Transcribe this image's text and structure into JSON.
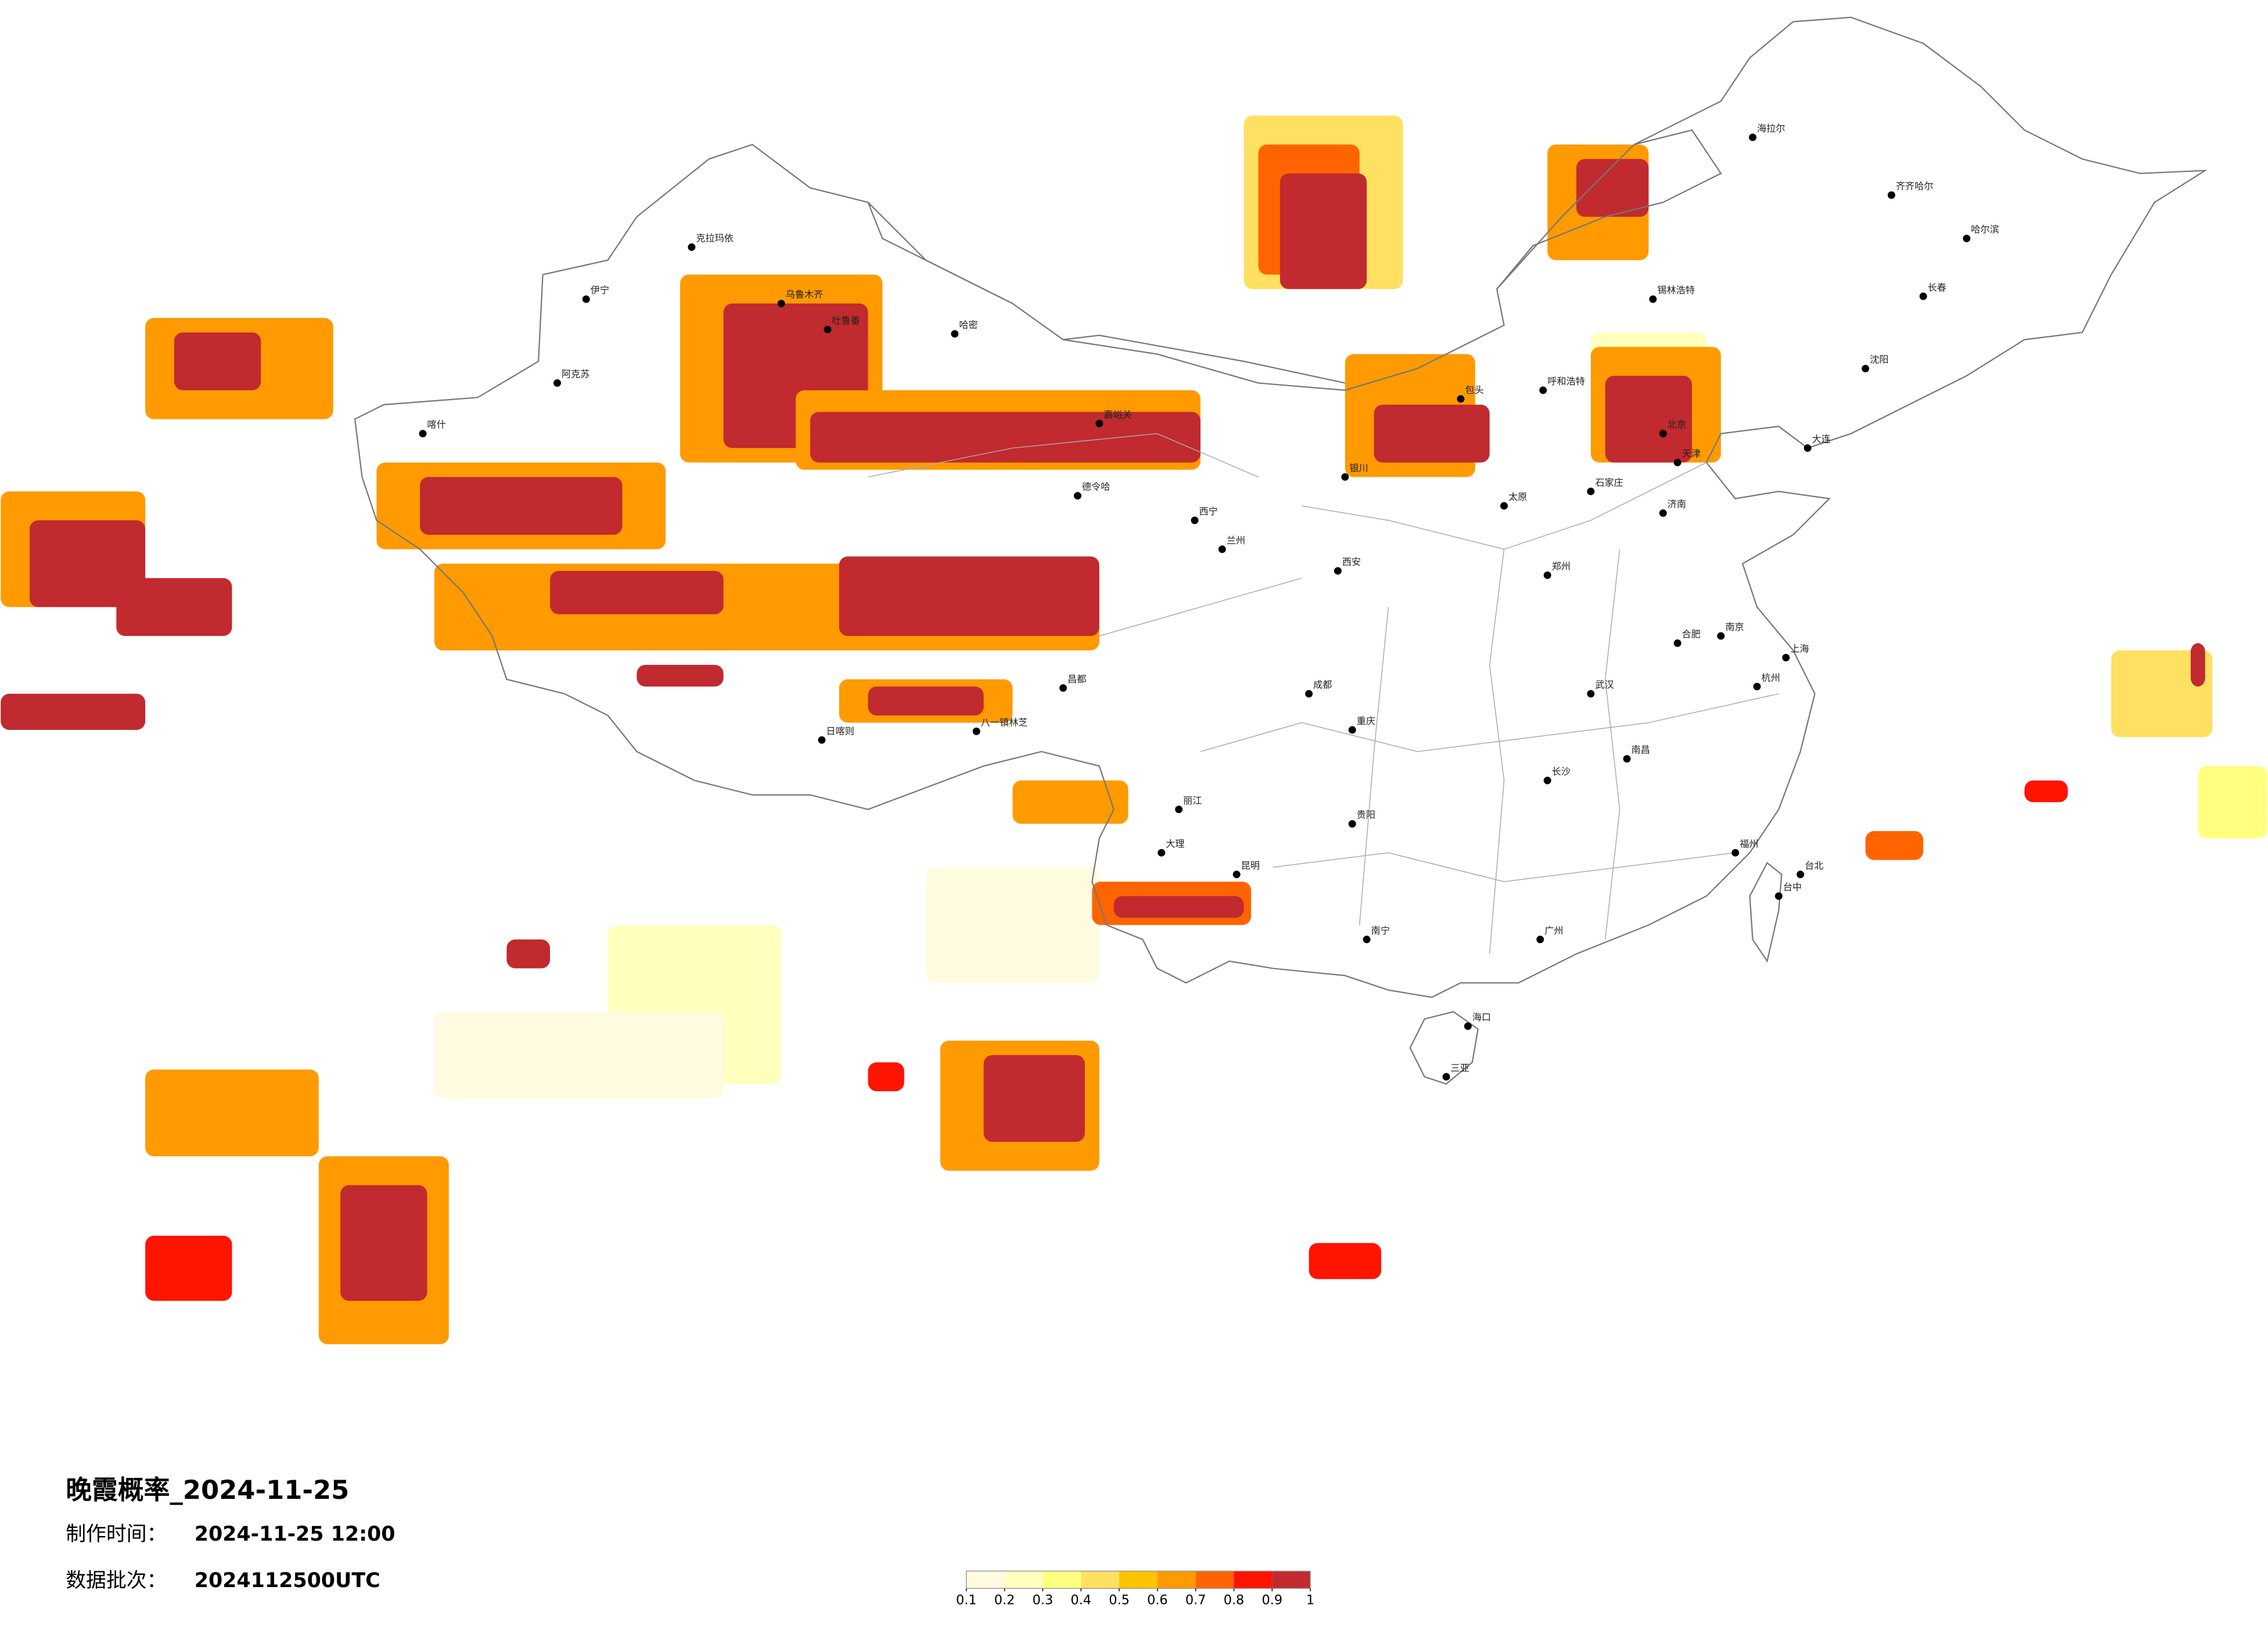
{
  "title": "晚霞概率_2024-11-25",
  "info": [
    {
      "label": "制作时间：",
      "value": "2024-11-25 12:00"
    },
    {
      "label": "数据批次：",
      "value": "2024112500UTC"
    }
  ],
  "colorbar": {
    "ticks": [
      0.1,
      0.2,
      0.3,
      0.4,
      0.5,
      0.6,
      0.7,
      0.8,
      0.9,
      1
    ],
    "colors": [
      "#fffbe0",
      "#ffffbe",
      "#ffff80",
      "#ffe060",
      "#ffc400",
      "#ff9a00",
      "#ff6400",
      "#ff1400",
      "#c12a2f"
    ]
  },
  "cities": [
    "克拉玛依",
    "伊宁",
    "阿克苏",
    "喀什",
    "哈密",
    "乌鲁木齐",
    "吐鲁番",
    "嘉峪关",
    "德令哈",
    "日喀则",
    "八一镇林芝",
    "昌都",
    "西宁",
    "兰州",
    "呼和浩特",
    "包头",
    "银川",
    "西安",
    "北京",
    "天津",
    "石家庄",
    "太原",
    "郑州",
    "济南",
    "南京",
    "上海",
    "杭州",
    "合肥",
    "武汉",
    "长沙",
    "南昌",
    "福州",
    "广州",
    "南宁",
    "海口",
    "三亚",
    "贵阳",
    "昆明",
    "成都",
    "重庆",
    "哈尔滨",
    "长春",
    "沈阳",
    "大连",
    "海拉尔",
    "齐齐哈尔",
    "锡林浩特",
    "台北",
    "台中",
    "大理",
    "丽江"
  ]
}
